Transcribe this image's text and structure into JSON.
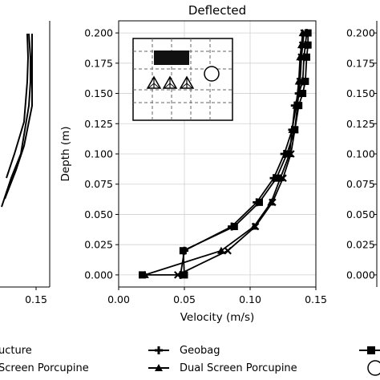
{
  "chart_data": {
    "type": "line",
    "title": "Deflected",
    "xlabel": "Velocity (m/s)",
    "ylabel": "Depth (m)",
    "xlim": [
      0.0,
      0.15
    ],
    "ylim": [
      -0.01,
      0.21
    ],
    "xticks": [
      "0.00",
      "0.05",
      "0.10",
      "0.15"
    ],
    "yticks": [
      "0.000",
      "0.025",
      "0.050",
      "0.075",
      "0.100",
      "0.125",
      "0.150",
      "0.175",
      "0.200"
    ],
    "grid": true,
    "series": [
      {
        "marker": "square",
        "x": [
          0.018,
          0.05,
          0.049,
          0.088,
          0.107,
          0.12,
          0.128,
          0.134,
          0.137,
          0.14,
          0.142,
          0.143,
          0.144,
          0.144
        ],
        "y": [
          0.0,
          0.0,
          0.02,
          0.04,
          0.06,
          0.08,
          0.1,
          0.12,
          0.14,
          0.15,
          0.16,
          0.18,
          0.19,
          0.2
        ]
      },
      {
        "name": "Geobag",
        "marker": "plus",
        "x": [
          0.047,
          0.05,
          0.086,
          0.105,
          0.118,
          0.126,
          0.132,
          0.134,
          0.137,
          0.14,
          0.141,
          0.142,
          0.143
        ],
        "y": [
          0.0,
          0.02,
          0.04,
          0.06,
          0.08,
          0.1,
          0.12,
          0.14,
          0.15,
          0.16,
          0.18,
          0.19,
          0.2
        ]
      },
      {
        "name": "Dual Screen Porcupine",
        "marker": "triangle",
        "x": [
          0.02,
          0.078,
          0.103,
          0.116,
          0.123,
          0.13,
          0.132,
          0.135,
          0.137,
          0.138,
          0.139,
          0.14
        ],
        "y": [
          0.0,
          0.02,
          0.04,
          0.06,
          0.08,
          0.1,
          0.12,
          0.14,
          0.16,
          0.18,
          0.19,
          0.2
        ]
      },
      {
        "marker": "x",
        "x": [
          0.045,
          0.083,
          0.104,
          0.117,
          0.125,
          0.131,
          0.134,
          0.136,
          0.138,
          0.139,
          0.14,
          0.141
        ],
        "y": [
          0.0,
          0.02,
          0.04,
          0.06,
          0.08,
          0.1,
          0.12,
          0.14,
          0.16,
          0.18,
          0.19,
          0.2
        ]
      }
    ]
  },
  "left_panel": {
    "xticks": [
      "0.15"
    ]
  },
  "right_panel": {
    "yticks": [
      "0.200",
      "0.175",
      "0.150",
      "0.125",
      "0.100",
      "0.075",
      "0.050",
      "0.025",
      "0.000"
    ]
  },
  "legend": {
    "items": [
      {
        "label": "ucture",
        "marker": "plus"
      },
      {
        "label": "Screen Porcupine",
        "marker": "triangle"
      },
      {
        "label": "Geobag",
        "marker": "plus"
      },
      {
        "label": "Dual Screen Porcupine",
        "marker": "triangle"
      }
    ]
  }
}
